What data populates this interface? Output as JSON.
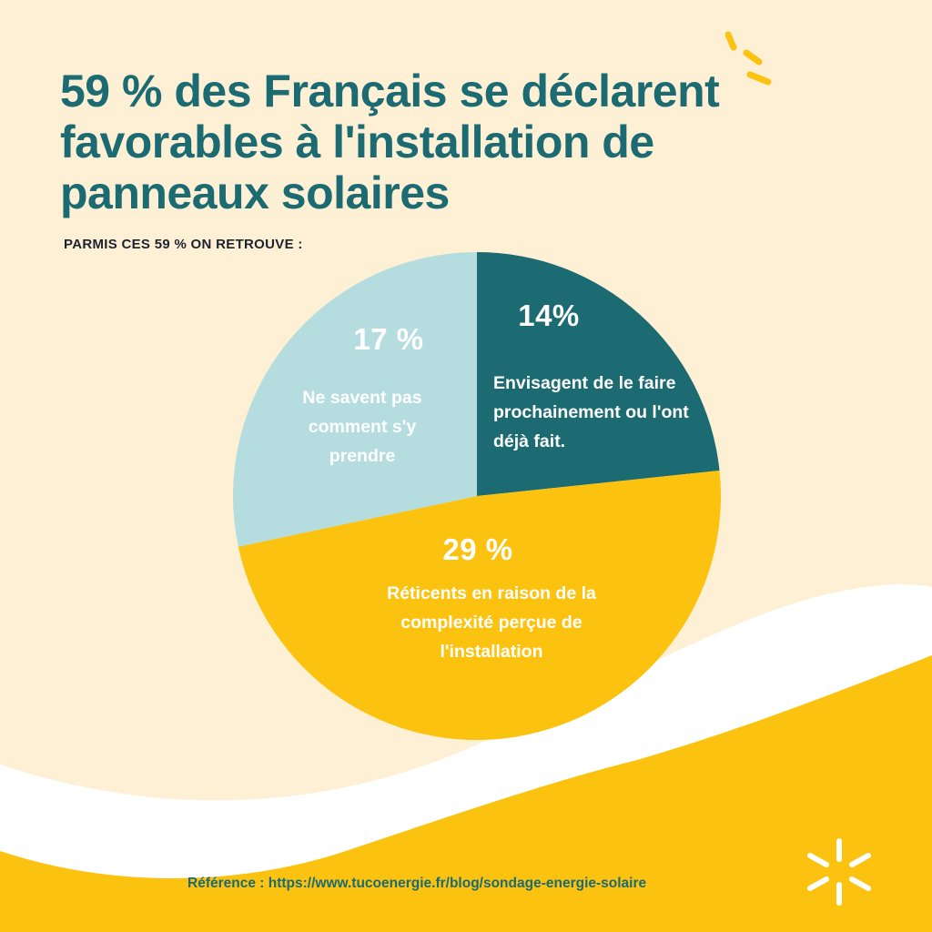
{
  "title": "59 % des Français se déclarent favorables à l'installation de panneaux solaires",
  "subtitle": "PARMIS CES 59 % ON RETROUVE :",
  "colors": {
    "background": "#fdf0d5",
    "accent_yellow": "#fbc30f",
    "teal_dark": "#1c6a72",
    "teal_light": "#b5dde0",
    "wave_white": "#ffffff"
  },
  "chart_data": {
    "type": "pie",
    "title": "",
    "slices": [
      {
        "value": 14,
        "label": "14%",
        "description": "Envisagent de le faire prochainement ou l'ont déjà fait.",
        "color": "#1c6a72"
      },
      {
        "value": 29,
        "label": "29 %",
        "description": "Réticents en raison de la complexité perçue de l'installation",
        "color": "#fbc30f"
      },
      {
        "value": 17,
        "label": "17 %",
        "description": "Ne savent pas comment s'y prendre",
        "color": "#b5dde0"
      }
    ]
  },
  "reference": "Référence : https://www.tucoenergie.fr/blog/sondage-energie-solaire",
  "icons": {
    "top_decoration": "sun-rays-icon",
    "bottom_logo": "sun-burst-logo-icon"
  }
}
